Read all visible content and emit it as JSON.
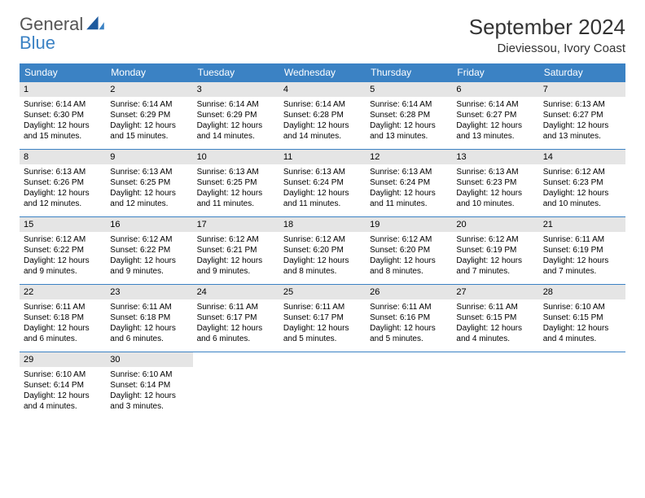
{
  "brand": {
    "name1": "General",
    "name2": "Blue"
  },
  "colors": {
    "header_bg": "#3b82c4",
    "header_text": "#ffffff",
    "daynum_bg": "#e5e5e5",
    "border": "#3b82c4",
    "body_text": "#000000",
    "title_text": "#333333",
    "brand_gray": "#555555",
    "brand_blue": "#3b82c4",
    "page_bg": "#ffffff"
  },
  "title": {
    "month": "September 2024",
    "location": "Dieviessou, Ivory Coast"
  },
  "day_labels": [
    "Sunday",
    "Monday",
    "Tuesday",
    "Wednesday",
    "Thursday",
    "Friday",
    "Saturday"
  ],
  "weeks": [
    [
      {
        "num": "1",
        "sunrise": "Sunrise: 6:14 AM",
        "sunset": "Sunset: 6:30 PM",
        "d1": "Daylight: 12 hours",
        "d2": "and 15 minutes."
      },
      {
        "num": "2",
        "sunrise": "Sunrise: 6:14 AM",
        "sunset": "Sunset: 6:29 PM",
        "d1": "Daylight: 12 hours",
        "d2": "and 15 minutes."
      },
      {
        "num": "3",
        "sunrise": "Sunrise: 6:14 AM",
        "sunset": "Sunset: 6:29 PM",
        "d1": "Daylight: 12 hours",
        "d2": "and 14 minutes."
      },
      {
        "num": "4",
        "sunrise": "Sunrise: 6:14 AM",
        "sunset": "Sunset: 6:28 PM",
        "d1": "Daylight: 12 hours",
        "d2": "and 14 minutes."
      },
      {
        "num": "5",
        "sunrise": "Sunrise: 6:14 AM",
        "sunset": "Sunset: 6:28 PM",
        "d1": "Daylight: 12 hours",
        "d2": "and 13 minutes."
      },
      {
        "num": "6",
        "sunrise": "Sunrise: 6:14 AM",
        "sunset": "Sunset: 6:27 PM",
        "d1": "Daylight: 12 hours",
        "d2": "and 13 minutes."
      },
      {
        "num": "7",
        "sunrise": "Sunrise: 6:13 AM",
        "sunset": "Sunset: 6:27 PM",
        "d1": "Daylight: 12 hours",
        "d2": "and 13 minutes."
      }
    ],
    [
      {
        "num": "8",
        "sunrise": "Sunrise: 6:13 AM",
        "sunset": "Sunset: 6:26 PM",
        "d1": "Daylight: 12 hours",
        "d2": "and 12 minutes."
      },
      {
        "num": "9",
        "sunrise": "Sunrise: 6:13 AM",
        "sunset": "Sunset: 6:25 PM",
        "d1": "Daylight: 12 hours",
        "d2": "and 12 minutes."
      },
      {
        "num": "10",
        "sunrise": "Sunrise: 6:13 AM",
        "sunset": "Sunset: 6:25 PM",
        "d1": "Daylight: 12 hours",
        "d2": "and 11 minutes."
      },
      {
        "num": "11",
        "sunrise": "Sunrise: 6:13 AM",
        "sunset": "Sunset: 6:24 PM",
        "d1": "Daylight: 12 hours",
        "d2": "and 11 minutes."
      },
      {
        "num": "12",
        "sunrise": "Sunrise: 6:13 AM",
        "sunset": "Sunset: 6:24 PM",
        "d1": "Daylight: 12 hours",
        "d2": "and 11 minutes."
      },
      {
        "num": "13",
        "sunrise": "Sunrise: 6:13 AM",
        "sunset": "Sunset: 6:23 PM",
        "d1": "Daylight: 12 hours",
        "d2": "and 10 minutes."
      },
      {
        "num": "14",
        "sunrise": "Sunrise: 6:12 AM",
        "sunset": "Sunset: 6:23 PM",
        "d1": "Daylight: 12 hours",
        "d2": "and 10 minutes."
      }
    ],
    [
      {
        "num": "15",
        "sunrise": "Sunrise: 6:12 AM",
        "sunset": "Sunset: 6:22 PM",
        "d1": "Daylight: 12 hours",
        "d2": "and 9 minutes."
      },
      {
        "num": "16",
        "sunrise": "Sunrise: 6:12 AM",
        "sunset": "Sunset: 6:22 PM",
        "d1": "Daylight: 12 hours",
        "d2": "and 9 minutes."
      },
      {
        "num": "17",
        "sunrise": "Sunrise: 6:12 AM",
        "sunset": "Sunset: 6:21 PM",
        "d1": "Daylight: 12 hours",
        "d2": "and 9 minutes."
      },
      {
        "num": "18",
        "sunrise": "Sunrise: 6:12 AM",
        "sunset": "Sunset: 6:20 PM",
        "d1": "Daylight: 12 hours",
        "d2": "and 8 minutes."
      },
      {
        "num": "19",
        "sunrise": "Sunrise: 6:12 AM",
        "sunset": "Sunset: 6:20 PM",
        "d1": "Daylight: 12 hours",
        "d2": "and 8 minutes."
      },
      {
        "num": "20",
        "sunrise": "Sunrise: 6:12 AM",
        "sunset": "Sunset: 6:19 PM",
        "d1": "Daylight: 12 hours",
        "d2": "and 7 minutes."
      },
      {
        "num": "21",
        "sunrise": "Sunrise: 6:11 AM",
        "sunset": "Sunset: 6:19 PM",
        "d1": "Daylight: 12 hours",
        "d2": "and 7 minutes."
      }
    ],
    [
      {
        "num": "22",
        "sunrise": "Sunrise: 6:11 AM",
        "sunset": "Sunset: 6:18 PM",
        "d1": "Daylight: 12 hours",
        "d2": "and 6 minutes."
      },
      {
        "num": "23",
        "sunrise": "Sunrise: 6:11 AM",
        "sunset": "Sunset: 6:18 PM",
        "d1": "Daylight: 12 hours",
        "d2": "and 6 minutes."
      },
      {
        "num": "24",
        "sunrise": "Sunrise: 6:11 AM",
        "sunset": "Sunset: 6:17 PM",
        "d1": "Daylight: 12 hours",
        "d2": "and 6 minutes."
      },
      {
        "num": "25",
        "sunrise": "Sunrise: 6:11 AM",
        "sunset": "Sunset: 6:17 PM",
        "d1": "Daylight: 12 hours",
        "d2": "and 5 minutes."
      },
      {
        "num": "26",
        "sunrise": "Sunrise: 6:11 AM",
        "sunset": "Sunset: 6:16 PM",
        "d1": "Daylight: 12 hours",
        "d2": "and 5 minutes."
      },
      {
        "num": "27",
        "sunrise": "Sunrise: 6:11 AM",
        "sunset": "Sunset: 6:15 PM",
        "d1": "Daylight: 12 hours",
        "d2": "and 4 minutes."
      },
      {
        "num": "28",
        "sunrise": "Sunrise: 6:10 AM",
        "sunset": "Sunset: 6:15 PM",
        "d1": "Daylight: 12 hours",
        "d2": "and 4 minutes."
      }
    ],
    [
      {
        "num": "29",
        "sunrise": "Sunrise: 6:10 AM",
        "sunset": "Sunset: 6:14 PM",
        "d1": "Daylight: 12 hours",
        "d2": "and 4 minutes."
      },
      {
        "num": "30",
        "sunrise": "Sunrise: 6:10 AM",
        "sunset": "Sunset: 6:14 PM",
        "d1": "Daylight: 12 hours",
        "d2": "and 3 minutes."
      },
      null,
      null,
      null,
      null,
      null
    ]
  ]
}
